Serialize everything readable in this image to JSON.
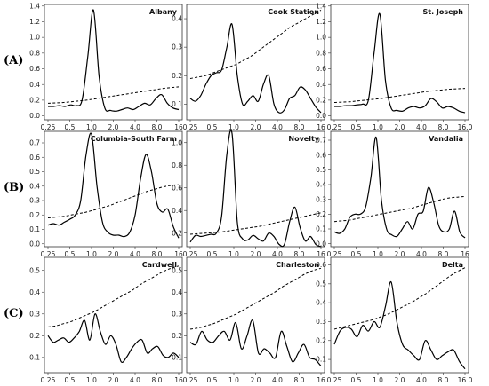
{
  "chart_data": [
    {
      "type": "line",
      "title": "Albany",
      "row": "(A)",
      "col": 0,
      "xticks": [
        "0.25",
        "0.5",
        "1.0",
        "2.0",
        "4.0",
        "8.0",
        "16"
      ],
      "yticks": [
        "0.0",
        "0.2",
        "0.4",
        "0.6",
        "0.8",
        "1.0",
        "1.2",
        "1.4"
      ],
      "ylim": [
        -0.05,
        1.42
      ],
      "series": [
        {
          "style": "solid",
          "values": [
            0.12,
            0.12,
            0.13,
            0.12,
            0.14,
            0.13,
            0.2,
            0.75,
            1.35,
            0.5,
            0.1,
            0.07,
            0.06,
            0.08,
            0.1,
            0.08,
            0.12,
            0.16,
            0.14,
            0.22,
            0.27,
            0.16,
            0.1,
            0.08
          ]
        },
        {
          "style": "dashed",
          "values": [
            0.16,
            0.165,
            0.17,
            0.18,
            0.19,
            0.2,
            0.215,
            0.23,
            0.245,
            0.26,
            0.275,
            0.29,
            0.305,
            0.32,
            0.335,
            0.35,
            0.36,
            0.37
          ]
        }
      ]
    },
    {
      "type": "line",
      "title": "Cook Station",
      "row": "(A)",
      "col": 1,
      "xticks": [
        "0.25",
        "0.5",
        "1.0",
        "2.0",
        "4.0",
        "8.0",
        "16"
      ],
      "yticks": [
        "0.1",
        "0.2",
        "0.3",
        "0.4"
      ],
      "ylim": [
        0.045,
        0.45
      ],
      "series": [
        {
          "style": "solid",
          "values": [
            0.12,
            0.11,
            0.13,
            0.17,
            0.2,
            0.21,
            0.22,
            0.3,
            0.38,
            0.2,
            0.1,
            0.11,
            0.13,
            0.11,
            0.17,
            0.2,
            0.1,
            0.07,
            0.08,
            0.12,
            0.13,
            0.16,
            0.15,
            0.12,
            0.09,
            0.07
          ]
        },
        {
          "style": "dashed",
          "values": [
            0.19,
            0.195,
            0.2,
            0.21,
            0.22,
            0.23,
            0.24,
            0.255,
            0.27,
            0.29,
            0.31,
            0.33,
            0.35,
            0.37,
            0.385,
            0.4,
            0.415,
            0.43
          ]
        }
      ]
    },
    {
      "type": "line",
      "title": "St. Joseph",
      "row": "(A)",
      "col": 2,
      "xticks": [
        "0.25",
        "0.5",
        "1.0",
        "2.0",
        "4.0",
        "8.0",
        "16.0"
      ],
      "yticks": [
        "0.0",
        "0.2",
        "0.4",
        "0.6",
        "0.8",
        "1.0",
        "1.2",
        "1.4"
      ],
      "ylim": [
        -0.05,
        1.42
      ],
      "series": [
        {
          "style": "solid",
          "values": [
            0.12,
            0.12,
            0.13,
            0.13,
            0.14,
            0.15,
            0.2,
            0.8,
            1.3,
            0.45,
            0.1,
            0.07,
            0.06,
            0.1,
            0.12,
            0.1,
            0.13,
            0.22,
            0.18,
            0.1,
            0.12,
            0.1,
            0.06,
            0.04
          ]
        },
        {
          "style": "dashed",
          "values": [
            0.17,
            0.175,
            0.18,
            0.19,
            0.2,
            0.21,
            0.22,
            0.235,
            0.25,
            0.265,
            0.28,
            0.295,
            0.31,
            0.32,
            0.33,
            0.34,
            0.345,
            0.35
          ]
        }
      ]
    },
    {
      "type": "line",
      "title": "Columbia-South Farm",
      "row": "(B)",
      "col": 0,
      "xticks": [
        "0.25",
        "0.5",
        "1.0",
        "2.0",
        "4.0",
        "8.0",
        "16"
      ],
      "yticks": [
        "0.0",
        "0.1",
        "0.2",
        "0.3",
        "0.4",
        "0.5",
        "0.6",
        "0.7"
      ],
      "ylim": [
        -0.02,
        0.78
      ],
      "series": [
        {
          "style": "solid",
          "values": [
            0.13,
            0.14,
            0.13,
            0.15,
            0.17,
            0.2,
            0.3,
            0.62,
            0.76,
            0.4,
            0.15,
            0.08,
            0.06,
            0.06,
            0.05,
            0.08,
            0.2,
            0.45,
            0.62,
            0.5,
            0.28,
            0.22,
            0.24,
            0.12,
            0.04
          ]
        },
        {
          "style": "dashed",
          "values": [
            0.18,
            0.185,
            0.19,
            0.2,
            0.21,
            0.22,
            0.235,
            0.25,
            0.265,
            0.285,
            0.305,
            0.325,
            0.345,
            0.365,
            0.38,
            0.395,
            0.405,
            0.41
          ]
        }
      ]
    },
    {
      "type": "line",
      "title": "Novelty",
      "row": "(B)",
      "col": 1,
      "xticks": [
        "0.25",
        "0.5",
        "1.0",
        "2.0",
        "4.0",
        "8.0",
        "16"
      ],
      "yticks": [
        "0.2",
        "0.4",
        "0.6",
        "0.8",
        "1.0"
      ],
      "ylim": [
        0.08,
        1.1
      ],
      "series": [
        {
          "style": "solid",
          "values": [
            0.12,
            0.18,
            0.17,
            0.18,
            0.19,
            0.2,
            0.35,
            0.9,
            1.08,
            0.3,
            0.15,
            0.14,
            0.18,
            0.15,
            0.13,
            0.2,
            0.17,
            0.1,
            0.1,
            0.3,
            0.43,
            0.25,
            0.13,
            0.17,
            0.1,
            0.08
          ]
        },
        {
          "style": "dashed",
          "values": [
            0.19,
            0.195,
            0.2,
            0.205,
            0.21,
            0.22,
            0.23,
            0.24,
            0.25,
            0.26,
            0.275,
            0.29,
            0.305,
            0.32,
            0.335,
            0.35,
            0.365,
            0.38
          ]
        }
      ]
    },
    {
      "type": "line",
      "title": "Vandalia",
      "row": "(B)",
      "col": 2,
      "xticks": [
        "0.25",
        "0.5",
        "1.0",
        "2.0",
        "4.0",
        "8.0",
        "16"
      ],
      "yticks": [
        "0.0",
        "0.1",
        "0.2",
        "0.3",
        "0.4",
        "0.5",
        "0.6",
        "0.7"
      ],
      "ylim": [
        -0.02,
        0.76
      ],
      "series": [
        {
          "style": "solid",
          "values": [
            0.08,
            0.07,
            0.1,
            0.18,
            0.2,
            0.2,
            0.25,
            0.45,
            0.72,
            0.3,
            0.1,
            0.06,
            0.05,
            0.1,
            0.15,
            0.1,
            0.2,
            0.22,
            0.38,
            0.28,
            0.12,
            0.08,
            0.1,
            0.22,
            0.08,
            0.04
          ]
        },
        {
          "style": "dashed",
          "values": [
            0.15,
            0.155,
            0.16,
            0.17,
            0.18,
            0.19,
            0.2,
            0.21,
            0.22,
            0.23,
            0.24,
            0.255,
            0.27,
            0.285,
            0.3,
            0.31,
            0.315,
            0.32
          ]
        }
      ]
    },
    {
      "type": "line",
      "title": "Cardwell",
      "row": "(C)",
      "col": 0,
      "xticks": [
        "0.25",
        "0.5",
        "1.0",
        "2.0",
        "4.0",
        "8.0",
        "16"
      ],
      "yticks": [
        "0.1",
        "0.2",
        "0.3",
        "0.4",
        "0.5"
      ],
      "ylim": [
        0.03,
        0.56
      ],
      "series": [
        {
          "style": "solid",
          "values": [
            0.2,
            0.17,
            0.18,
            0.19,
            0.17,
            0.19,
            0.22,
            0.27,
            0.18,
            0.3,
            0.22,
            0.16,
            0.2,
            0.16,
            0.08,
            0.1,
            0.14,
            0.17,
            0.18,
            0.12,
            0.14,
            0.15,
            0.11,
            0.1,
            0.12,
            0.1
          ]
        },
        {
          "style": "dashed",
          "values": [
            0.24,
            0.245,
            0.255,
            0.265,
            0.28,
            0.295,
            0.31,
            0.33,
            0.35,
            0.37,
            0.39,
            0.41,
            0.435,
            0.455,
            0.475,
            0.495,
            0.51,
            0.52
          ]
        }
      ]
    },
    {
      "type": "line",
      "title": "Charleston",
      "row": "(C)",
      "col": 1,
      "xticks": [
        "0.25",
        "0.5",
        "1.0",
        "2.0",
        "4.0",
        "8.0",
        "16"
      ],
      "yticks": [
        "0.1",
        "0.2",
        "0.3",
        "0.4",
        "0.5"
      ],
      "ylim": [
        0.03,
        0.56
      ],
      "series": [
        {
          "style": "solid",
          "values": [
            0.17,
            0.16,
            0.22,
            0.18,
            0.17,
            0.2,
            0.22,
            0.18,
            0.26,
            0.14,
            0.2,
            0.27,
            0.12,
            0.14,
            0.12,
            0.1,
            0.22,
            0.15,
            0.08,
            0.12,
            0.16,
            0.1,
            0.09,
            0.06
          ]
        },
        {
          "style": "dashed",
          "values": [
            0.23,
            0.235,
            0.245,
            0.255,
            0.27,
            0.285,
            0.3,
            0.32,
            0.34,
            0.36,
            0.38,
            0.4,
            0.425,
            0.445,
            0.465,
            0.485,
            0.5,
            0.51
          ]
        }
      ]
    },
    {
      "type": "line",
      "title": "Delta",
      "row": "(C)",
      "col": 2,
      "xticks": [
        "0.25",
        "0.5",
        "1.0",
        "2.0",
        "4.0",
        "8.0",
        "16.0"
      ],
      "yticks": [
        "0.1",
        "0.2",
        "0.3",
        "0.4",
        "0.5",
        "0.6"
      ],
      "ylim": [
        0.03,
        0.64
      ],
      "series": [
        {
          "style": "solid",
          "values": [
            0.18,
            0.25,
            0.27,
            0.26,
            0.22,
            0.28,
            0.25,
            0.3,
            0.27,
            0.38,
            0.51,
            0.3,
            0.18,
            0.15,
            0.12,
            0.1,
            0.2,
            0.15,
            0.1,
            0.12,
            0.14,
            0.15,
            0.09,
            0.05
          ]
        },
        {
          "style": "dashed",
          "values": [
            0.26,
            0.27,
            0.28,
            0.29,
            0.3,
            0.31,
            0.325,
            0.34,
            0.36,
            0.38,
            0.4,
            0.425,
            0.45,
            0.48,
            0.51,
            0.54,
            0.565,
            0.585
          ]
        }
      ]
    }
  ],
  "row_labels": [
    "(A)",
    "(B)",
    "(C)"
  ]
}
